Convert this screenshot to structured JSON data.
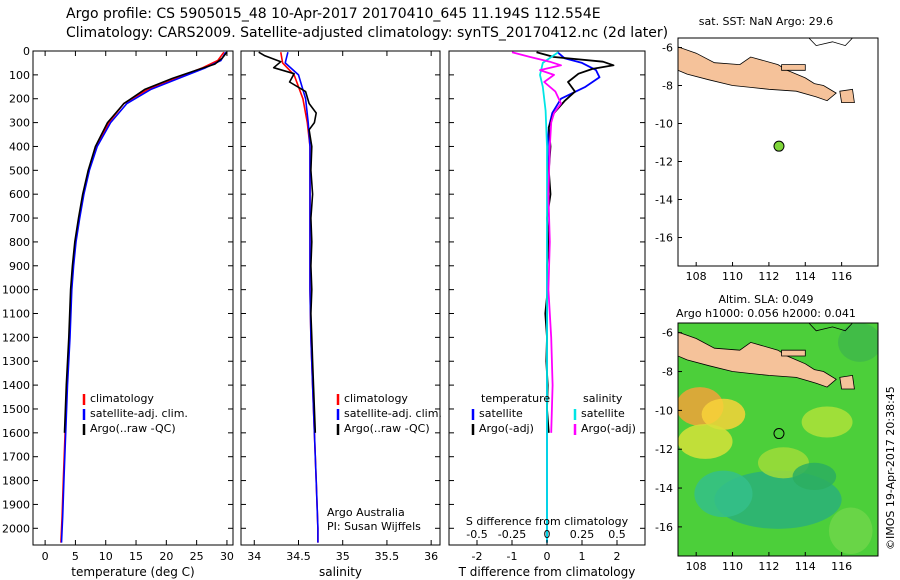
{
  "header": {
    "title_line1": "Argo profile: CS 5905015_48 10-Apr-2017 20170410_645 11.194S 112.554E",
    "title_line2": "Climatology: CARS2009. Satellite-adjusted climatology: synTS_20170412.nc (2d later)"
  },
  "colors": {
    "climatology": "#ff0000",
    "satellite": "#0000ff",
    "argo": "#000000",
    "sal_satellite": "#00e5e5",
    "sal_argo": "#ff00ff",
    "land": "#f5c29a",
    "float_marker": "#7fd63a"
  },
  "chart_data": [
    {
      "type": "line",
      "name": "temperature-profile",
      "xlabel": "temperature (deg C)",
      "ylabel": "",
      "xlim": [
        -2,
        31
      ],
      "ylim": [
        2070,
        0
      ],
      "xticks": [
        0,
        5,
        10,
        15,
        20,
        25,
        30
      ],
      "yticks": [
        0,
        100,
        200,
        300,
        400,
        500,
        600,
        700,
        800,
        900,
        1000,
        1100,
        1200,
        1300,
        1400,
        1500,
        1600,
        1700,
        1800,
        1900,
        2000
      ],
      "legend": [
        "climatology",
        "satellite-adj. clim.",
        "Argo(..raw -QC)"
      ],
      "legend_position": "lower-right",
      "series": [
        {
          "name": "climatology",
          "color_key": "climatology",
          "points": [
            [
              29.5,
              5
            ],
            [
              28.5,
              40
            ],
            [
              26,
              70
            ],
            [
              22,
              110
            ],
            [
              17,
              160
            ],
            [
              13,
              220
            ],
            [
              10.5,
              300
            ],
            [
              8.5,
              400
            ],
            [
              7.2,
              500
            ],
            [
              6.3,
              600
            ],
            [
              5.6,
              700
            ],
            [
              5.0,
              800
            ],
            [
              4.6,
              900
            ],
            [
              4.3,
              1000
            ],
            [
              4.0,
              1200
            ],
            [
              3.6,
              1400
            ],
            [
              3.3,
              1600
            ],
            [
              3.0,
              1800
            ],
            [
              2.8,
              1950
            ],
            [
              2.6,
              2060
            ]
          ]
        },
        {
          "name": "satellite-adj. clim.",
          "color_key": "satellite",
          "points": [
            [
              29.8,
              5
            ],
            [
              29,
              40
            ],
            [
              26.5,
              70
            ],
            [
              22.5,
              110
            ],
            [
              17.5,
              160
            ],
            [
              13.5,
              220
            ],
            [
              10.8,
              300
            ],
            [
              8.6,
              400
            ],
            [
              7.3,
              500
            ],
            [
              6.4,
              600
            ],
            [
              5.7,
              700
            ],
            [
              5.1,
              800
            ],
            [
              4.7,
              900
            ],
            [
              4.4,
              1000
            ],
            [
              4.1,
              1200
            ],
            [
              3.7,
              1400
            ],
            [
              3.4,
              1600
            ],
            [
              3.1,
              1800
            ],
            [
              2.9,
              1950
            ],
            [
              2.7,
              2060
            ]
          ]
        },
        {
          "name": "Argo(..raw -QC)",
          "color_key": "argo",
          "points": [
            [
              30,
              5
            ],
            [
              29.2,
              30
            ],
            [
              28,
              55
            ],
            [
              25,
              80
            ],
            [
              21,
              115
            ],
            [
              16.5,
              160
            ],
            [
              13,
              220
            ],
            [
              10.3,
              300
            ],
            [
              8.3,
              400
            ],
            [
              7.1,
              500
            ],
            [
              6.2,
              600
            ],
            [
              5.5,
              700
            ],
            [
              4.9,
              800
            ],
            [
              4.5,
              900
            ],
            [
              4.2,
              1000
            ],
            [
              3.9,
              1200
            ],
            [
              3.5,
              1400
            ],
            [
              3.2,
              1600
            ]
          ]
        }
      ]
    },
    {
      "type": "line",
      "name": "salinity-profile",
      "xlabel": "salinity",
      "xlim": [
        33.85,
        36.1
      ],
      "ylim": [
        2070,
        0
      ],
      "xticks": [
        34,
        34.5,
        35,
        35.5,
        36
      ],
      "xticklabels": [
        "34",
        "34.5",
        "35",
        "35.5",
        "36"
      ],
      "legend": [
        "climatology",
        "satellite-adj. clim.",
        "Argo(..raw -QC)"
      ],
      "annotation": [
        "Argo Australia",
        "PI: Susan Wijffels"
      ],
      "series": [
        {
          "name": "climatology",
          "color_key": "climatology",
          "points": [
            [
              34.3,
              5
            ],
            [
              34.32,
              50
            ],
            [
              34.45,
              100
            ],
            [
              34.55,
              200
            ],
            [
              34.6,
              300
            ],
            [
              34.63,
              400
            ],
            [
              34.63,
              600
            ],
            [
              34.63,
              800
            ],
            [
              34.63,
              1000
            ],
            [
              34.64,
              1200
            ],
            [
              34.66,
              1400
            ],
            [
              34.68,
              1600
            ],
            [
              34.7,
              1800
            ],
            [
              34.72,
              2000
            ],
            [
              34.72,
              2060
            ]
          ]
        },
        {
          "name": "satellite-adj. clim.",
          "color_key": "satellite",
          "points": [
            [
              34.38,
              5
            ],
            [
              34.35,
              50
            ],
            [
              34.5,
              100
            ],
            [
              34.58,
              200
            ],
            [
              34.61,
              300
            ],
            [
              34.63,
              400
            ],
            [
              34.63,
              600
            ],
            [
              34.63,
              800
            ],
            [
              34.63,
              1000
            ],
            [
              34.64,
              1200
            ],
            [
              34.66,
              1400
            ],
            [
              34.68,
              1600
            ],
            [
              34.7,
              1800
            ],
            [
              34.72,
              2000
            ],
            [
              34.72,
              2060
            ]
          ]
        },
        {
          "name": "Argo(..raw -QC)",
          "color_key": "argo",
          "points": [
            [
              34.05,
              5
            ],
            [
              34.12,
              20
            ],
            [
              34.3,
              45
            ],
            [
              34.22,
              70
            ],
            [
              34.45,
              95
            ],
            [
              34.4,
              130
            ],
            [
              34.58,
              170
            ],
            [
              34.62,
              220
            ],
            [
              34.7,
              260
            ],
            [
              34.68,
              300
            ],
            [
              34.62,
              330
            ],
            [
              34.65,
              400
            ],
            [
              34.64,
              500
            ],
            [
              34.66,
              600
            ],
            [
              34.64,
              700
            ],
            [
              34.65,
              800
            ],
            [
              34.64,
              900
            ],
            [
              34.65,
              1000
            ],
            [
              34.64,
              1100
            ],
            [
              34.65,
              1200
            ],
            [
              34.66,
              1300
            ],
            [
              34.67,
              1400
            ],
            [
              34.68,
              1500
            ],
            [
              34.69,
              1600
            ]
          ]
        }
      ]
    },
    {
      "type": "line",
      "name": "difference-profile",
      "xlabel": "T difference from climatology",
      "toplabel": "S difference from climatology",
      "xlim": [
        -2.8,
        2.8
      ],
      "ylim": [
        2070,
        0
      ],
      "xticks_T": [
        -2,
        -1,
        0,
        1,
        2
      ],
      "xticks_S": [
        -0.5,
        -0.25,
        0,
        0.25,
        0.5
      ],
      "xticklabels_S": [
        "-0.5",
        "-0.25",
        "0",
        "0.25",
        "0.5"
      ],
      "s_scale": 4,
      "legend_temperature_title": "temperature",
      "legend_salinity_title": "salinity",
      "legend": [
        "satellite",
        "Argo(-adj)",
        "satellite",
        "Argo(-adj)"
      ],
      "series": [
        {
          "name": "satellite",
          "group": "temperature",
          "color_key": "satellite",
          "points": [
            [
              0.3,
              5
            ],
            [
              0.5,
              30
            ],
            [
              1.0,
              50
            ],
            [
              1.4,
              80
            ],
            [
              1.5,
              110
            ],
            [
              1.1,
              150
            ],
            [
              0.4,
              200
            ],
            [
              0.15,
              260
            ],
            [
              0.05,
              320
            ],
            [
              0.02,
              400
            ],
            [
              0.01,
              600
            ],
            [
              0.0,
              1000
            ],
            [
              0.0,
              2060
            ]
          ]
        },
        {
          "name": "Argo(-adj)",
          "group": "temperature",
          "color_key": "argo",
          "points": [
            [
              -0.3,
              5
            ],
            [
              0.2,
              25
            ],
            [
              1.6,
              45
            ],
            [
              1.9,
              60
            ],
            [
              1.3,
              75
            ],
            [
              0.9,
              95
            ],
            [
              0.6,
              130
            ],
            [
              0.8,
              170
            ],
            [
              0.5,
              210
            ],
            [
              0.2,
              260
            ],
            [
              0.05,
              320
            ],
            [
              0.1,
              400
            ],
            [
              0.05,
              500
            ],
            [
              0.1,
              600
            ],
            [
              0.0,
              700
            ],
            [
              0.05,
              800
            ],
            [
              0.0,
              900
            ],
            [
              0.02,
              1000
            ],
            [
              -0.05,
              1100
            ],
            [
              0.0,
              1200
            ],
            [
              -0.02,
              1300
            ],
            [
              0.02,
              1400
            ],
            [
              0.0,
              1500
            ],
            [
              0.05,
              1600
            ]
          ]
        },
        {
          "name": "satellite",
          "group": "salinity",
          "color_key": "sal_satellite",
          "points": [
            [
              0.08,
              5
            ],
            [
              -0.03,
              50
            ],
            [
              -0.05,
              100
            ],
            [
              -0.03,
              150
            ],
            [
              -0.01,
              250
            ],
            [
              0.0,
              400
            ],
            [
              0.0,
              1000
            ],
            [
              0.0,
              2060
            ]
          ]
        },
        {
          "name": "Argo(-adj)",
          "group": "salinity",
          "color_key": "sal_argo",
          "points": [
            [
              -0.25,
              5
            ],
            [
              -0.12,
              25
            ],
            [
              0.02,
              45
            ],
            [
              0.1,
              60
            ],
            [
              -0.05,
              80
            ],
            [
              0.05,
              100
            ],
            [
              -0.02,
              130
            ],
            [
              0.06,
              170
            ],
            [
              0.1,
              220
            ],
            [
              0.05,
              260
            ],
            [
              0.03,
              300
            ],
            [
              0.02,
              400
            ],
            [
              0.01,
              600
            ],
            [
              0.02,
              800
            ],
            [
              0.01,
              1000
            ],
            [
              0.03,
              1200
            ],
            [
              0.04,
              1400
            ],
            [
              0.03,
              1600
            ]
          ]
        }
      ]
    },
    {
      "type": "scatter",
      "name": "map-sst",
      "title": "sat. SST: NaN Argo: 29.6",
      "xlim": [
        107,
        118
      ],
      "ylim": [
        -17.5,
        -5.5
      ],
      "xticks": [
        108,
        110,
        112,
        114,
        116
      ],
      "yticks": [
        -6,
        -8,
        -10,
        -12,
        -14,
        -16
      ],
      "float_position": {
        "lon": 112.554,
        "lat": -11.194
      }
    },
    {
      "type": "heatmap",
      "name": "map-sla",
      "title_line1": "Altim. SLA: 0.049",
      "title_line2": "Argo h1000: 0.056 h2000: 0.041",
      "xlim": [
        107,
        118
      ],
      "ylim": [
        -17.5,
        -5.5
      ],
      "xticks": [
        108,
        110,
        112,
        114,
        116
      ],
      "yticks": [
        -6,
        -8,
        -10,
        -12,
        -14,
        -16
      ],
      "float_position": {
        "lon": 112.554,
        "lat": -11.194
      }
    }
  ],
  "footer": {
    "stamp": "©IMOS 19-Apr-2017 20:38:45"
  }
}
